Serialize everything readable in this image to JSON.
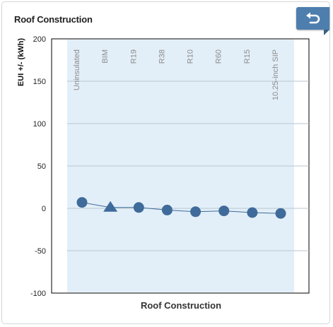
{
  "panel": {
    "title": "Roof Construction"
  },
  "chart_data": {
    "type": "line",
    "title": "Roof Construction",
    "xlabel": "Roof Construction",
    "ylabel": "EUI +/- (kWh)",
    "categories": [
      "Uninsulated",
      "BIM",
      "R19",
      "R38",
      "R10",
      "R60",
      "R15",
      "10.25-inch SIP"
    ],
    "series": [
      {
        "values": [
          7,
          1,
          1,
          -2,
          -4,
          -3,
          -5,
          -6
        ]
      }
    ],
    "baseline_category": "BIM",
    "ylim": [
      -100,
      200
    ],
    "yticks": [
      200,
      150,
      100,
      50,
      0,
      -50,
      -100
    ],
    "grid": true,
    "colors": {
      "accent": "#3e6b9a",
      "plot_band": "#e3eff8",
      "grid": "#b9c6d1"
    }
  },
  "icons": {
    "back": "return-arrow-icon"
  }
}
